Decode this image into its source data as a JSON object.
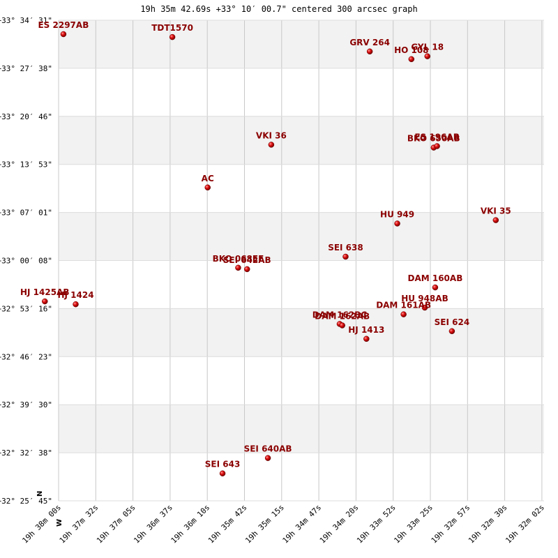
{
  "chart_data": {
    "type": "scatter",
    "title": "19h 35m 42.69s +33° 10′ 00.7\" centered 300 arcsec graph",
    "direction_labels": {
      "north": "N",
      "west": "W"
    },
    "x_ticks": [
      "19h 38m 00s",
      "19h 37m 32s",
      "19h 37m 05s",
      "19h 36m 37s",
      "19h 36m 10s",
      "19h 35m 42s",
      "19h 35m 15s",
      "19h 34m 47s",
      "19h 34m 20s",
      "19h 33m 52s",
      "19h 33m 25s",
      "19h 32m 57s",
      "19h 32m 30s",
      "19h 32m 02s"
    ],
    "y_ticks": [
      "+33° 34′ 31\"",
      "+33° 27′ 38\"",
      "+33° 20′ 46\"",
      "+33° 13′ 53\"",
      "+33° 07′ 01\"",
      "+33° 00′ 08\"",
      "+32° 53′ 16\"",
      "+32° 46′ 23\"",
      "+32° 39′ 30\"",
      "+32° 32′ 38\"",
      "+32° 25′ 45\""
    ],
    "x_range": [
      0,
      13
    ],
    "y_range": [
      0,
      10
    ],
    "grid": true,
    "points": [
      {
        "label": "ES 2297AB",
        "x": 0.13,
        "y": 0.29
      },
      {
        "label": "TDT1570",
        "x": 3.06,
        "y": 0.35
      },
      {
        "label": "GRV 264",
        "x": 8.37,
        "y": 0.65
      },
      {
        "label": "HO 108",
        "x": 9.49,
        "y": 0.81
      },
      {
        "label": "GYL  18",
        "x": 9.92,
        "y": 0.75
      },
      {
        "label": "VKI  36",
        "x": 5.72,
        "y": 2.59
      },
      {
        "label": "BKO 650AB",
        "x": 10.09,
        "y": 2.65
      },
      {
        "label": "ES 196AB",
        "x": 10.18,
        "y": 2.62
      },
      {
        "label": "AC",
        "x": 4.01,
        "y": 3.48
      },
      {
        "label": "HU  949",
        "x": 9.11,
        "y": 4.23
      },
      {
        "label": "VKI  35",
        "x": 11.76,
        "y": 4.16
      },
      {
        "label": "SEI 638",
        "x": 7.72,
        "y": 4.92
      },
      {
        "label": "BKO 068EE",
        "x": 4.83,
        "y": 5.15
      },
      {
        "label": "SEI 642AB",
        "x": 5.07,
        "y": 5.18
      },
      {
        "label": "DAM 160AB",
        "x": 10.13,
        "y": 5.56
      },
      {
        "label": "HJ 1425AB",
        "x": -0.37,
        "y": 5.85
      },
      {
        "label": "HJ 1424",
        "x": 0.46,
        "y": 5.91
      },
      {
        "label": "HU  948AB",
        "x": 9.85,
        "y": 5.98
      },
      {
        "label": "DAM 161AB",
        "x": 9.28,
        "y": 6.12
      },
      {
        "label": "DAM 162BC",
        "x": 7.56,
        "y": 6.32
      },
      {
        "label": "DAM 162AB",
        "x": 7.63,
        "y": 6.35
      },
      {
        "label": "HJ 1413",
        "x": 8.28,
        "y": 6.63
      },
      {
        "label": "SEI 624",
        "x": 10.58,
        "y": 6.47
      },
      {
        "label": "SEI 640AB",
        "x": 5.63,
        "y": 9.11
      },
      {
        "label": "SEI 643",
        "x": 4.41,
        "y": 9.43
      }
    ]
  }
}
